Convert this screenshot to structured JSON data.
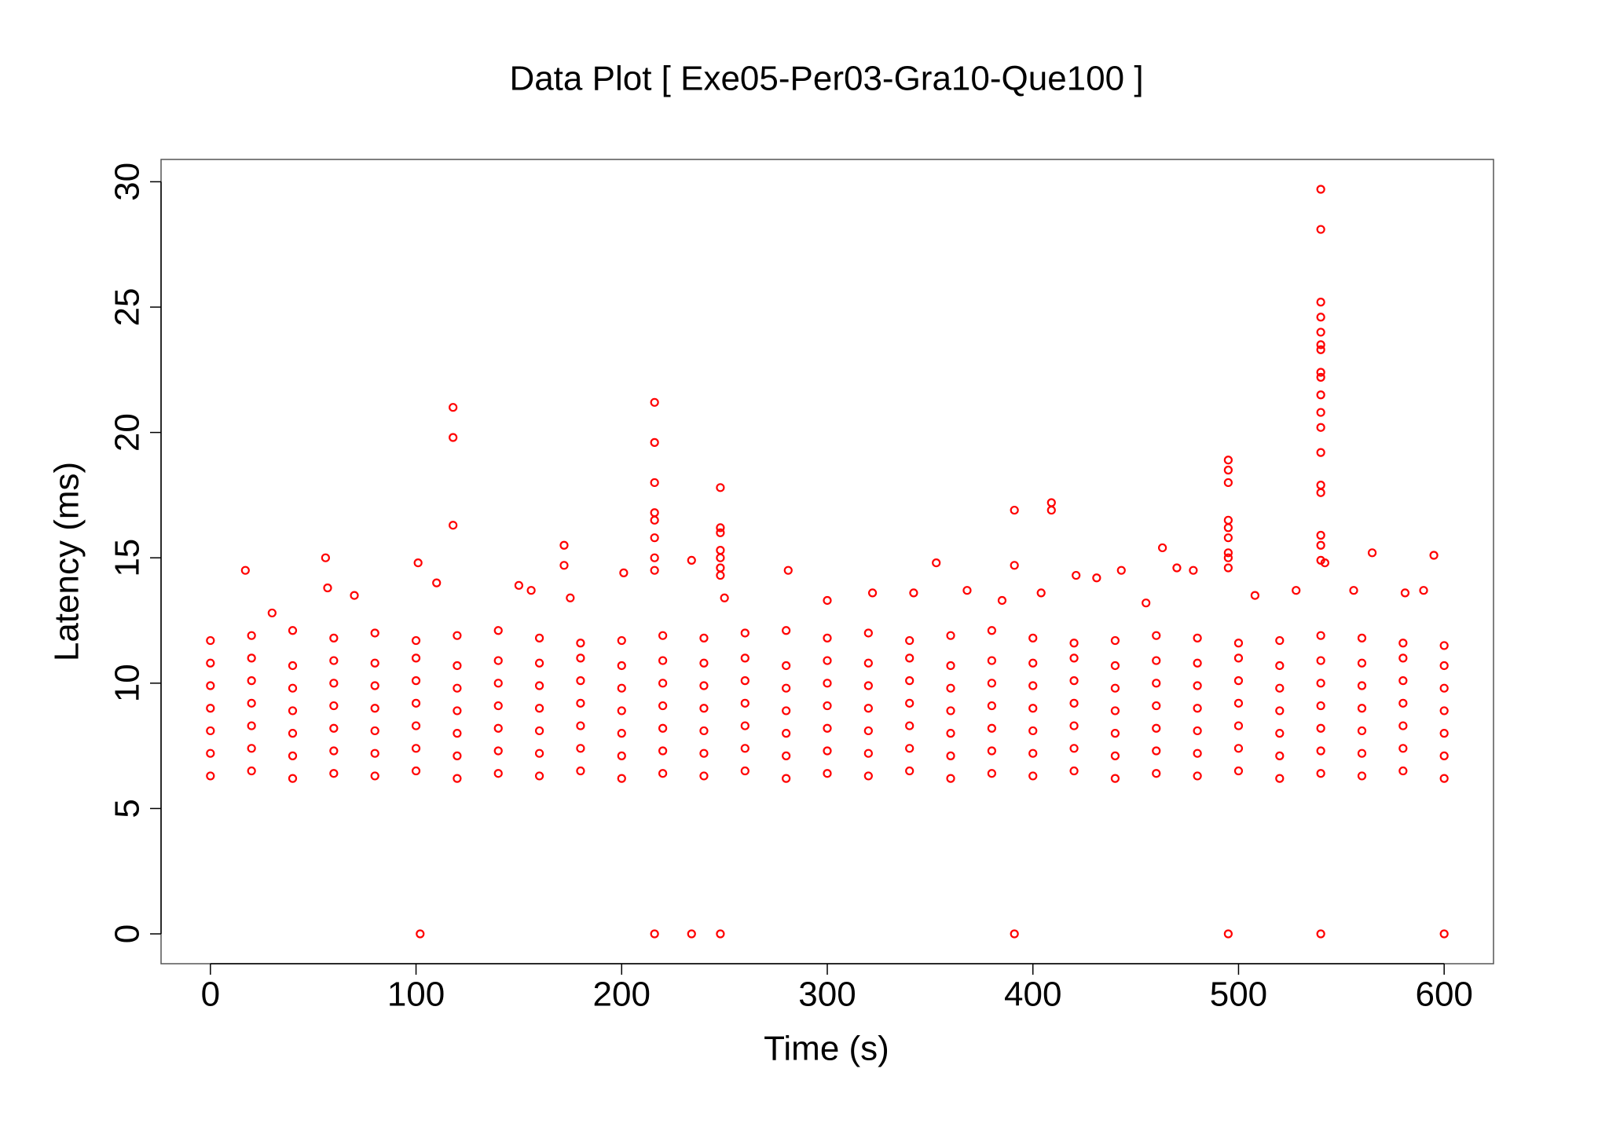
{
  "chart_data": {
    "type": "scatter",
    "title": "Data Plot [ Exe05-Per03-Gra10-Que100 ]",
    "xlabel": "Time (s)",
    "ylabel": "Latency (ms)",
    "xlim": [
      -24,
      624
    ],
    "ylim": [
      -1.19,
      30.89
    ],
    "xticks": [
      0,
      100,
      200,
      300,
      400,
      500,
      600
    ],
    "yticks": [
      0,
      5,
      10,
      15,
      20,
      25,
      30
    ],
    "color": "#ff0000",
    "grid": false,
    "x": [
      0,
      20,
      40,
      60,
      80,
      100,
      120,
      140,
      160,
      180,
      200,
      220,
      240,
      260,
      280,
      300,
      320,
      340,
      360,
      380,
      400,
      420,
      440,
      460,
      480,
      500,
      520,
      540,
      560,
      580,
      600,
      0,
      20,
      40,
      60,
      80,
      100,
      120,
      140,
      160,
      180,
      200,
      220,
      240,
      260,
      280,
      300,
      320,
      340,
      360,
      380,
      400,
      420,
      440,
      460,
      480,
      500,
      520,
      540,
      560,
      580,
      600,
      0,
      20,
      40,
      60,
      80,
      100,
      120,
      140,
      160,
      180,
      200,
      220,
      240,
      260,
      280,
      300,
      320,
      340,
      360,
      380,
      400,
      420,
      440,
      460,
      480,
      500,
      520,
      540,
      560,
      580,
      600,
      0,
      20,
      40,
      60,
      80,
      100,
      120,
      140,
      160,
      180,
      200,
      220,
      240,
      260,
      280,
      300,
      320,
      340,
      360,
      380,
      400,
      420,
      440,
      460,
      480,
      500,
      520,
      540,
      560,
      580,
      600,
      0,
      20,
      40,
      60,
      80,
      100,
      120,
      140,
      160,
      180,
      200,
      220,
      240,
      260,
      280,
      300,
      320,
      340,
      360,
      380,
      400,
      420,
      440,
      460,
      480,
      500,
      520,
      540,
      560,
      580,
      600,
      0,
      20,
      40,
      60,
      80,
      100,
      120,
      140,
      160,
      180,
      200,
      220,
      240,
      260,
      280,
      300,
      320,
      340,
      360,
      380,
      400,
      420,
      440,
      460,
      480,
      500,
      520,
      540,
      560,
      580,
      600,
      0,
      20,
      40,
      60,
      80,
      100,
      120,
      140,
      160,
      180,
      200,
      220,
      240,
      260,
      280,
      300,
      320,
      340,
      360,
      380,
      400,
      420,
      440,
      460,
      480,
      500,
      520,
      540,
      560,
      580,
      600,
      102,
      216,
      234,
      248,
      391,
      495,
      540,
      600,
      118,
      118,
      118,
      216,
      216,
      216,
      216,
      216,
      216,
      216,
      216,
      234,
      248,
      248,
      248,
      248,
      248,
      248,
      248,
      391,
      391,
      409,
      409,
      495,
      495,
      495,
      495,
      495,
      495,
      495,
      495,
      495,
      540,
      540,
      540,
      540,
      540,
      540,
      540,
      540,
      540,
      540,
      540,
      540,
      540,
      540,
      540,
      540,
      540,
      540,
      542,
      17,
      56,
      101,
      172,
      172,
      201,
      281,
      353,
      463,
      478,
      565,
      595,
      421,
      431,
      443,
      470,
      110,
      57,
      30,
      70,
      150,
      156,
      175,
      250,
      300,
      322,
      342,
      368,
      385,
      404,
      455,
      508,
      528,
      556,
      581,
      590
    ],
    "y": [
      6.3,
      6.5,
      6.2,
      6.4,
      6.3,
      6.5,
      6.2,
      6.4,
      6.3,
      6.5,
      6.2,
      6.4,
      6.3,
      6.5,
      6.2,
      6.4,
      6.3,
      6.5,
      6.2,
      6.4,
      6.3,
      6.5,
      6.2,
      6.4,
      6.3,
      6.5,
      6.2,
      6.4,
      6.3,
      6.5,
      6.2,
      7.2,
      7.4,
      7.1,
      7.3,
      7.2,
      7.4,
      7.1,
      7.3,
      7.2,
      7.4,
      7.1,
      7.3,
      7.2,
      7.4,
      7.1,
      7.3,
      7.2,
      7.4,
      7.1,
      7.3,
      7.2,
      7.4,
      7.1,
      7.3,
      7.2,
      7.4,
      7.1,
      7.3,
      7.2,
      7.4,
      7.1,
      8.1,
      8.3,
      8,
      8.2,
      8.1,
      8.3,
      8,
      8.2,
      8.1,
      8.3,
      8,
      8.2,
      8.1,
      8.3,
      8,
      8.2,
      8.1,
      8.3,
      8,
      8.2,
      8.1,
      8.3,
      8,
      8.2,
      8.1,
      8.3,
      8,
      8.2,
      8.1,
      8.3,
      8,
      9,
      9.2,
      8.9,
      9.1,
      9,
      9.2,
      8.9,
      9.1,
      9,
      9.2,
      8.9,
      9.1,
      9,
      9.2,
      8.9,
      9.1,
      9,
      9.2,
      8.9,
      9.1,
      9,
      9.2,
      8.9,
      9.1,
      9,
      9.2,
      8.9,
      9.1,
      9,
      9.2,
      8.9,
      9.9,
      10.1,
      9.8,
      10,
      9.9,
      10.1,
      9.8,
      10,
      9.9,
      10.1,
      9.8,
      10,
      9.9,
      10.1,
      9.8,
      10,
      9.9,
      10.1,
      9.8,
      10,
      9.9,
      10.1,
      9.8,
      10,
      9.9,
      10.1,
      9.8,
      10,
      9.9,
      10.1,
      9.8,
      10.8,
      11,
      10.7,
      10.9,
      10.8,
      11,
      10.7,
      10.9,
      10.8,
      11,
      10.7,
      10.9,
      10.8,
      11,
      10.7,
      10.9,
      10.8,
      11,
      10.7,
      10.9,
      10.8,
      11,
      10.7,
      10.9,
      10.8,
      11,
      10.7,
      10.9,
      10.8,
      11,
      10.7,
      11.7,
      11.9,
      12.1,
      11.8,
      12,
      11.7,
      11.9,
      12.1,
      11.8,
      11.6,
      11.7,
      11.9,
      11.8,
      12,
      12.1,
      11.8,
      12,
      11.7,
      11.9,
      12.1,
      11.8,
      11.6,
      11.7,
      11.9,
      11.8,
      11.6,
      11.7,
      11.9,
      11.8,
      11.6,
      11.5,
      0,
      0,
      0,
      0,
      0,
      0,
      0,
      0,
      21,
      19.8,
      16.3,
      21.2,
      19.6,
      18,
      16.8,
      16.5,
      15.8,
      15,
      14.5,
      14.9,
      17.8,
      16.2,
      16,
      15.3,
      15,
      14.6,
      14.3,
      16.9,
      14.7,
      17.2,
      16.9,
      18.9,
      18.5,
      18,
      16.5,
      16.2,
      15.8,
      15.2,
      15,
      14.6,
      29.7,
      28.1,
      25.2,
      24.6,
      24,
      23.5,
      23.3,
      22.4,
      22.2,
      21.5,
      20.8,
      20.2,
      19.2,
      17.9,
      17.6,
      15.9,
      15.5,
      14.9,
      14.8,
      14.5,
      15,
      14.8,
      15.5,
      14.7,
      14.4,
      14.5,
      14.8,
      15.4,
      14.5,
      15.2,
      15.1,
      14.3,
      14.2,
      14.5,
      14.6,
      14,
      13.8,
      12.8,
      13.5,
      13.9,
      13.7,
      13.4,
      13.4,
      13.3,
      13.6,
      13.6,
      13.7,
      13.3,
      13.6,
      13.2,
      13.5,
      13.7,
      13.7,
      13.6,
      13.7
    ]
  }
}
